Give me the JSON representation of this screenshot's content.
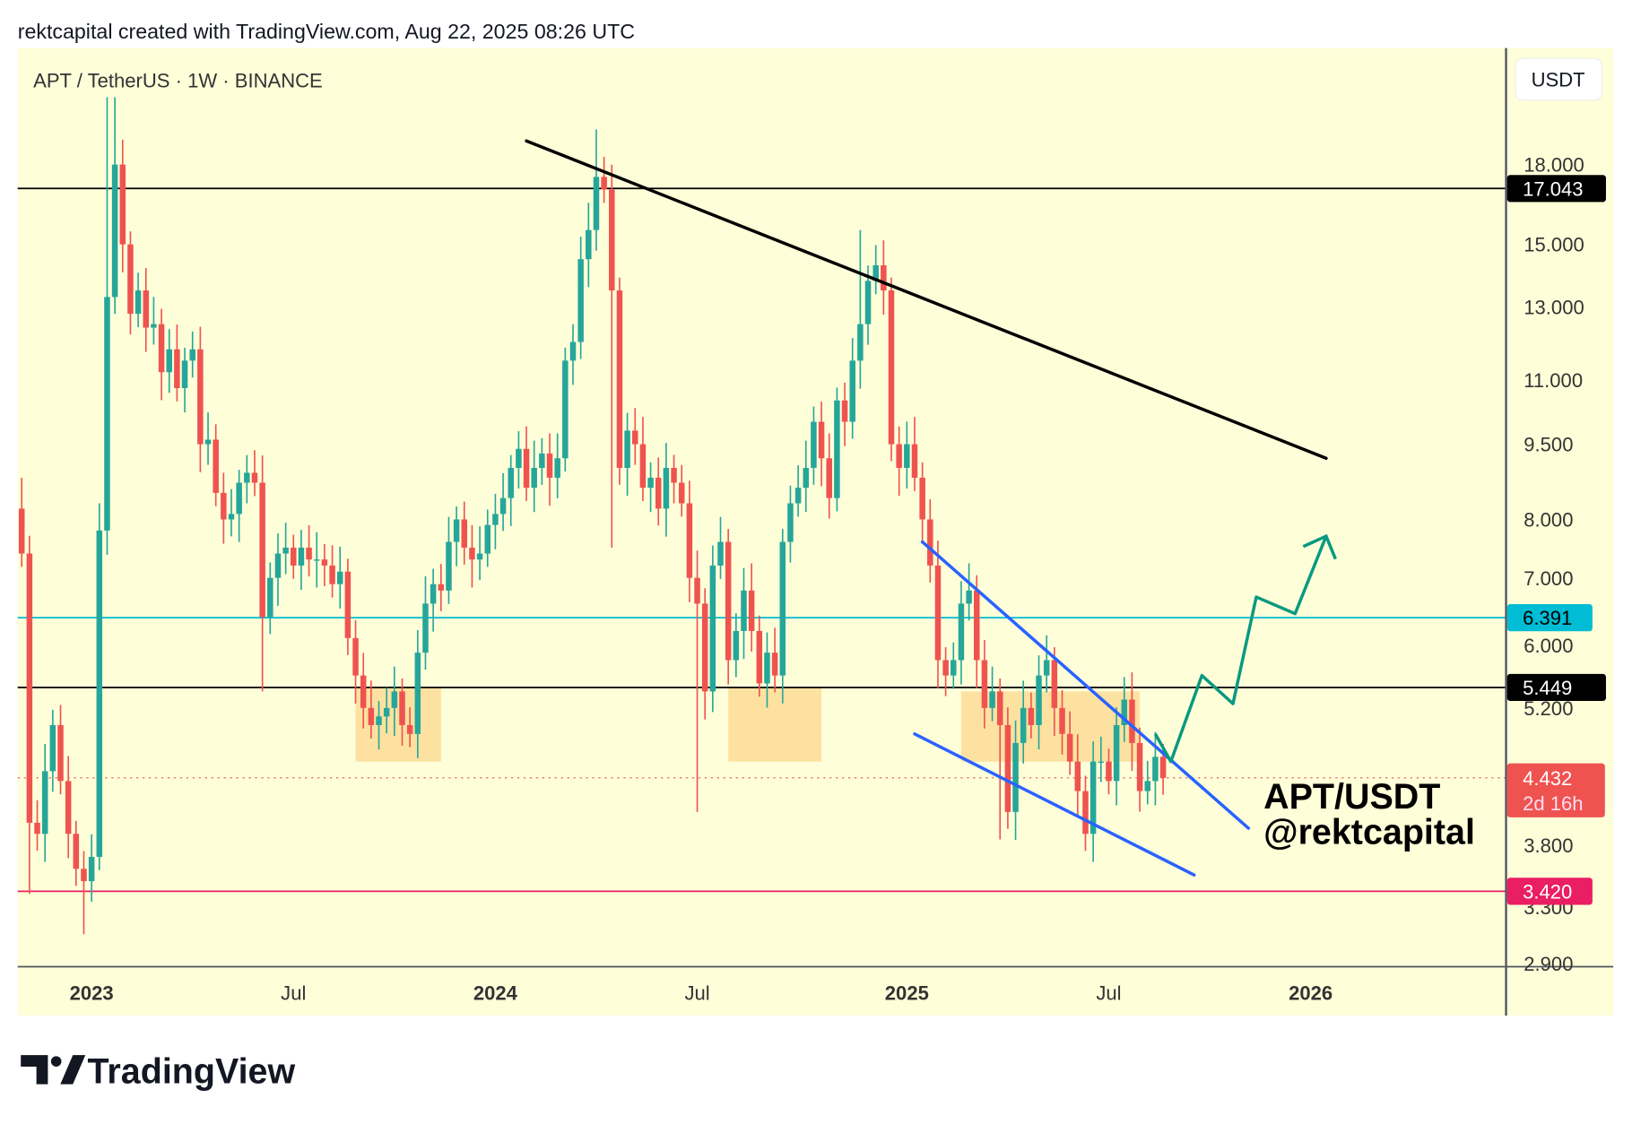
{
  "header": {
    "caption": "rektcapital created with TradingView.com, Aug 22, 2025 08:26 UTC"
  },
  "legend": {
    "symbol": "APT / TetherUS · 1W · BINANCE"
  },
  "currency_button": "USDT",
  "watermark": {
    "line1": "APT/USDT",
    "line2": "@rektcapital"
  },
  "logo": {
    "text": "TradingView"
  },
  "colors": {
    "up": "#26a69a",
    "down": "#ef5350",
    "background": "#fefed9",
    "cyan": "#00bcd4",
    "pink": "#e91e63",
    "wedge": "#2962ff",
    "arrow": "#089981",
    "zone": "#fddc95"
  },
  "chart_data": {
    "type": "candlestick",
    "title": "APT / TetherUS · 1W · BINANCE",
    "timeframe": "1W",
    "y_scale": "log",
    "ylim": [
      2.8,
      22
    ],
    "y_ticks": [
      "18.000",
      "15.000",
      "13.000",
      "11.000",
      "9.500",
      "8.000",
      "7.000",
      "6.000",
      "5.200",
      "3.800",
      "3.300",
      "2.900"
    ],
    "x_ticks": [
      {
        "label": "2023",
        "bold": true,
        "week": 0
      },
      {
        "label": "Jul",
        "bold": false,
        "week": 26
      },
      {
        "label": "2024",
        "bold": true,
        "week": 52
      },
      {
        "label": "Jul",
        "bold": false,
        "week": 78
      },
      {
        "label": "2025",
        "bold": true,
        "week": 105
      },
      {
        "label": "Jul",
        "bold": false,
        "week": 131
      },
      {
        "label": "2026",
        "bold": true,
        "week": 157
      }
    ],
    "first_candle_week": -9,
    "first_open": 8.2,
    "close": [
      7.4,
      4.0,
      3.9,
      4.5,
      5.0,
      4.4,
      3.9,
      3.6,
      3.5,
      3.7,
      7.8,
      13.3,
      18.0,
      15.0,
      12.8,
      13.5,
      12.4,
      12.5,
      11.2,
      11.8,
      10.8,
      11.5,
      11.8,
      9.5,
      9.6,
      8.5,
      8.0,
      8.1,
      8.7,
      8.9,
      8.7,
      6.4,
      7.0,
      7.4,
      7.5,
      7.2,
      7.5,
      7.3,
      7.3,
      7.2,
      6.9,
      7.1,
      6.1,
      5.6,
      5.2,
      5.0,
      5.1,
      5.2,
      5.4,
      5.0,
      4.9,
      5.9,
      6.6,
      6.9,
      6.8,
      7.6,
      8.0,
      7.5,
      7.3,
      7.4,
      7.9,
      8.1,
      8.4,
      9.0,
      9.4,
      8.6,
      9.0,
      9.3,
      8.8,
      9.2,
      11.5,
      12.0,
      14.5,
      15.5,
      17.5,
      17.0,
      13.5,
      9.0,
      9.8,
      9.5,
      8.6,
      8.8,
      8.2,
      9.0,
      8.7,
      8.3,
      7.0,
      6.6,
      5.4,
      7.2,
      7.6,
      5.8,
      6.2,
      6.8,
      6.2,
      5.5,
      5.9,
      5.6,
      7.6,
      8.3,
      8.6,
      9.0,
      10.0,
      9.2,
      8.4,
      10.5,
      10.0,
      11.5,
      12.5,
      13.8,
      14.3,
      13.5,
      9.5,
      9.0,
      9.5,
      8.8,
      8.0,
      7.2,
      5.8,
      5.6,
      5.8,
      6.6,
      6.8,
      5.8,
      5.2,
      5.4,
      5.0,
      4.1,
      4.8,
      5.2,
      5.0,
      5.6,
      5.8,
      5.2,
      4.9,
      4.6,
      4.3,
      3.9,
      4.6,
      4.6,
      4.4,
      5.0,
      5.3,
      4.8,
      4.3,
      4.4,
      4.65,
      4.432
    ],
    "wick_overrides": {
      "0": {
        "high": 8.8
      },
      "1": {
        "low": 3.4
      },
      "8": {
        "low": 3.1
      },
      "11": {
        "high": 21.0
      },
      "12": {
        "high": 21.0
      },
      "31": {
        "low": 5.4
      },
      "74": {
        "high": 19.5
      },
      "76": {
        "low": 7.5
      },
      "87": {
        "low": 4.1
      },
      "108": {
        "high": 15.5
      },
      "126": {
        "low": 3.85
      },
      "137": {
        "low": 3.75
      }
    },
    "horizontal_levels": [
      {
        "price": 17.043,
        "label": "17.043",
        "color": "#000000",
        "text_color": "#ffffff",
        "style": "solid"
      },
      {
        "price": 6.391,
        "label": "6.391",
        "color": "#00bcd4",
        "text_color": "#000000",
        "style": "solid"
      },
      {
        "price": 5.449,
        "label": "5.449",
        "color": "#000000",
        "text_color": "#ffffff",
        "style": "solid"
      },
      {
        "price": 3.42,
        "label": "3.420",
        "color": "#e91e63",
        "text_color": "#ffffff",
        "style": "solid"
      }
    ],
    "last_price": {
      "price": 4.432,
      "label": "4.432",
      "countdown": "2d 16h",
      "color": "#ef5350"
    },
    "support_zones": [
      {
        "from_week": 34,
        "to_week": 45,
        "low": 4.6,
        "high": 5.449
      },
      {
        "from_week": 82,
        "to_week": 94,
        "low": 4.6,
        "high": 5.449
      },
      {
        "from_week": 112,
        "to_week": 135,
        "low": 4.6,
        "high": 5.4
      }
    ],
    "trendlines": [
      {
        "name": "macro-downtrend",
        "color": "#000000",
        "points": [
          {
            "week": 56,
            "price": 19.0
          },
          {
            "week": 159,
            "price": 9.2
          }
        ]
      },
      {
        "name": "wedge-upper",
        "color": "#2962ff",
        "points": [
          {
            "week": 107,
            "price": 7.6
          },
          {
            "week": 149,
            "price": 3.95
          }
        ]
      },
      {
        "name": "wedge-lower",
        "color": "#2962ff",
        "points": [
          {
            "week": 106,
            "price": 4.9
          },
          {
            "week": 142,
            "price": 3.55
          }
        ]
      }
    ],
    "projection": {
      "color": "#089981",
      "points": [
        {
          "week": 137,
          "price": 4.9
        },
        {
          "week": 139,
          "price": 4.6
        },
        {
          "week": 143,
          "price": 5.6
        },
        {
          "week": 147,
          "price": 5.25
        },
        {
          "week": 150,
          "price": 6.7
        },
        {
          "week": 155,
          "price": 6.45
        },
        {
          "week": 159,
          "price": 7.7
        }
      ]
    }
  }
}
